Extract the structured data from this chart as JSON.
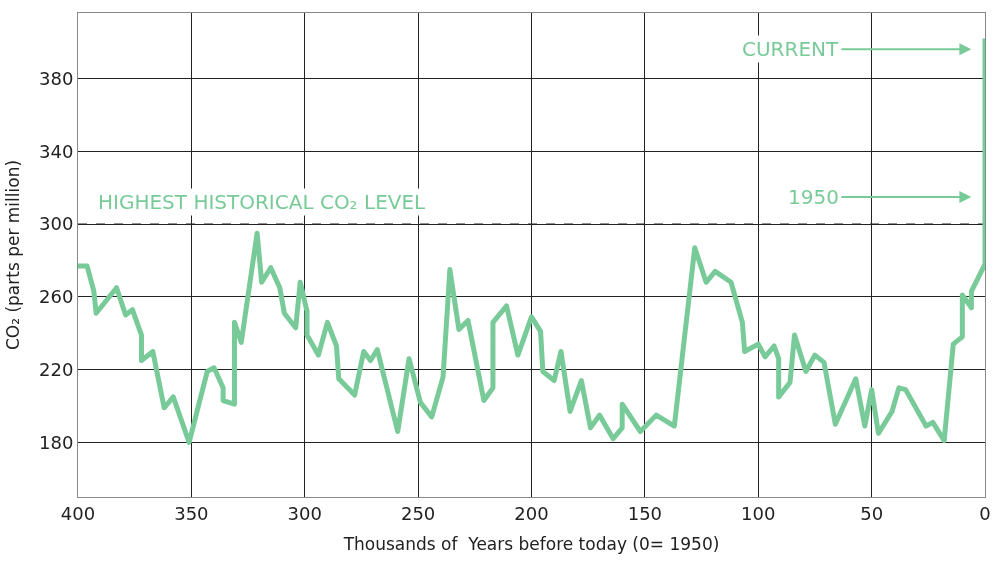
{
  "chart_data": {
    "type": "line",
    "xlabel": "Thousands of  Years before today (0= 1950)",
    "ylabel": "CO₂ (parts per million)",
    "x": [
      400,
      396,
      393,
      392,
      383,
      379,
      376,
      372,
      372,
      367,
      362,
      358,
      351,
      343,
      340,
      336,
      336,
      331,
      331,
      328,
      321,
      319,
      315,
      311,
      309,
      304,
      302,
      299,
      299,
      294,
      290,
      286,
      285,
      278,
      274,
      271,
      268,
      259,
      254,
      249,
      244,
      239,
      236,
      232,
      228,
      221,
      217,
      217,
      211,
      206,
      200,
      196,
      195,
      190,
      187,
      183,
      178,
      174,
      170,
      164,
      160,
      160,
      152,
      145,
      137,
      128,
      123,
      119,
      112,
      107,
      106,
      100,
      97,
      93,
      91,
      91,
      86,
      84,
      79,
      75,
      71,
      66,
      57,
      53,
      50,
      47,
      41,
      38,
      35,
      26,
      23,
      18,
      14,
      10,
      10,
      6,
      6,
      0,
      0
    ],
    "series": [
      {
        "color": "#78cb98",
        "values": [
          277,
          277,
          263,
          251,
          265,
          250,
          253,
          239,
          225,
          230,
          199,
          205,
          180,
          219,
          221,
          210,
          203,
          201,
          246,
          235,
          295,
          268,
          276,
          265,
          251,
          243,
          268,
          252,
          239,
          228,
          246,
          233,
          215,
          206,
          230,
          225,
          231,
          186,
          226,
          202,
          194,
          216,
          275,
          242,
          247,
          203,
          210,
          246,
          255,
          228,
          249,
          241,
          219,
          214,
          230,
          197,
          214,
          188,
          195,
          182,
          188,
          201,
          186,
          195,
          189,
          287,
          268,
          274,
          268,
          246,
          230,
          234,
          227,
          233,
          226,
          205,
          213,
          239,
          219,
          228,
          224,
          190,
          215,
          189,
          209,
          185,
          197,
          210,
          209,
          189,
          191,
          181,
          234,
          238,
          261,
          254,
          263,
          278,
          402
        ]
      }
    ],
    "xlim": [
      400,
      0
    ],
    "ylim": [
      150,
      416
    ],
    "xticks": [
      400,
      350,
      300,
      250,
      200,
      150,
      100,
      50,
      0
    ],
    "yticks": [
      180,
      220,
      260,
      300,
      340,
      380
    ],
    "grid": true,
    "marker": "none",
    "line_style": "solid",
    "ref_lines": [
      {
        "axis": "y",
        "value": 300,
        "label": "HIGHEST HISTORICAL CO₂ LEVEL",
        "color": "#000000",
        "line_style": "dashed"
      }
    ],
    "annotations": [
      "CURRENT",
      "1950"
    ]
  }
}
